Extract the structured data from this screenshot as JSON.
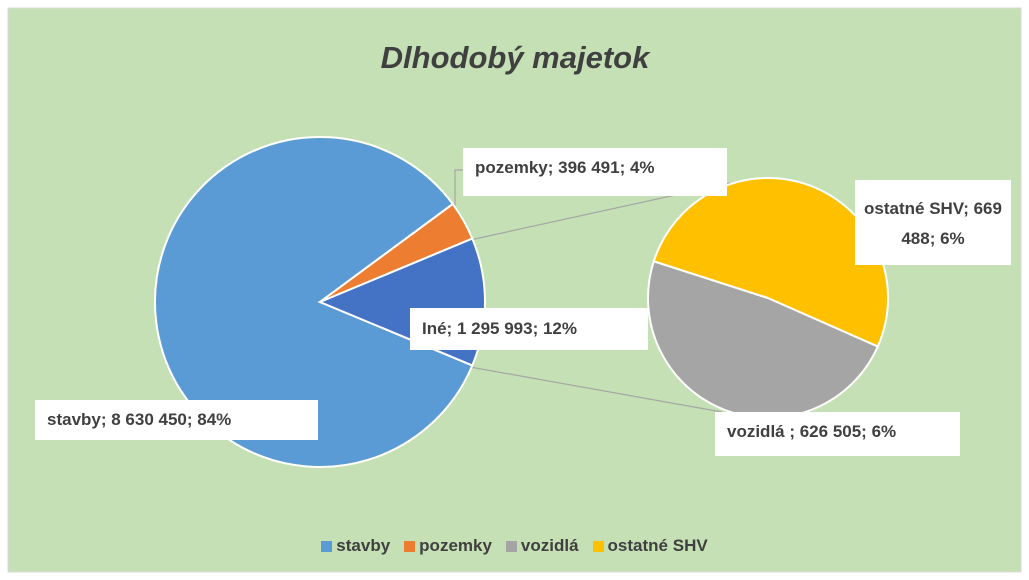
{
  "chart_data": {
    "type": "pie",
    "title": "Dlhodobý majetok",
    "pies": [
      {
        "categories": [
          "stavby",
          "pozemky",
          "Iné"
        ],
        "values": [
          8630450,
          396491,
          1295993
        ],
        "value_labels": [
          "stavby; 8 630 450; 84%",
          "pozemky; 396 491; 4%",
          "Iné; 1 295 993; 12%"
        ],
        "colors": [
          "#5b9bd5",
          "#ed7d31",
          "#4472c4"
        ]
      },
      {
        "categories": [
          "vozidlá",
          "ostatné SHV"
        ],
        "values": [
          626505,
          669488
        ],
        "value_labels": [
          "vozidlá ; 626 505; 6%",
          "ostatné SHV; 669 488; 6%"
        ],
        "colors": [
          "#a5a5a5",
          "#ffc000"
        ]
      }
    ],
    "legend": [
      {
        "name": "stavby",
        "color": "#5b9bd5"
      },
      {
        "name": "pozemky",
        "color": "#ed7d31"
      },
      {
        "name": "vozidlá",
        "color": "#a5a5a5"
      },
      {
        "name": "ostatné SHV",
        "color": "#ffc000"
      }
    ]
  }
}
